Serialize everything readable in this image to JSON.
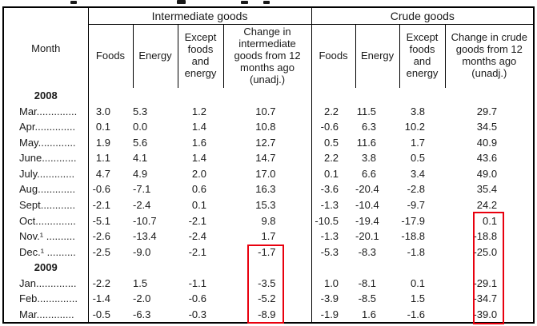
{
  "page": {
    "background": "#ffffff",
    "text_color": "#1a1a1a",
    "border_color": "#000000",
    "highlight_color": "#e8000e"
  },
  "table": {
    "month_header": "Month",
    "groups": [
      {
        "title": "Intermediate goods",
        "columns": [
          "Foods",
          "Energy",
          "Except foods and energy",
          "Change in intermediate goods from 12 months ago (unadj.)"
        ]
      },
      {
        "title": "Crude goods",
        "columns": [
          "Foods",
          "Energy",
          "Except foods and energy",
          "Change in crude goods from 12 months ago (unadj.)"
        ]
      }
    ],
    "rows": [
      {
        "kind": "year",
        "label": "2008"
      },
      {
        "kind": "month",
        "label": "Mar..............",
        "values": [
          "3.0",
          "5.3",
          "1.2",
          "10.7",
          "2.2",
          "11.5",
          "3.8",
          "29.7"
        ]
      },
      {
        "kind": "month",
        "label": "Apr..............",
        "values": [
          "0.1",
          "0.0",
          "1.4",
          "10.8",
          "-0.6",
          "6.3",
          "10.2",
          "34.5"
        ]
      },
      {
        "kind": "month",
        "label": "May.............",
        "values": [
          "1.9",
          "5.6",
          "1.6",
          "12.7",
          "0.5",
          "11.6",
          "1.7",
          "40.9"
        ]
      },
      {
        "kind": "month",
        "label": "June............",
        "values": [
          "1.1",
          "4.1",
          "1.4",
          "14.7",
          "2.2",
          "3.8",
          "0.5",
          "43.6"
        ]
      },
      {
        "kind": "month",
        "label": "July.............",
        "values": [
          "4.7",
          "4.9",
          "2.0",
          "17.0",
          "0.1",
          "6.6",
          "3.4",
          "49.0"
        ]
      },
      {
        "kind": "month",
        "label": "Aug.............",
        "values": [
          "-0.6",
          "-7.1",
          "0.6",
          "16.3",
          "-3.6",
          "-20.4",
          "-2.8",
          "35.4"
        ]
      },
      {
        "kind": "month",
        "label": "Sept............",
        "values": [
          "-2.1",
          "-2.4",
          "0.1",
          "15.3",
          "-1.3",
          "-10.4",
          "-9.7",
          "24.2"
        ]
      },
      {
        "kind": "month",
        "label": "Oct..............",
        "values": [
          "-5.1",
          "-10.7",
          "-2.1",
          "9.8",
          "-10.5",
          "-19.4",
          "-17.9",
          "0.1"
        ]
      },
      {
        "kind": "month",
        "label": "Nov.¹ ..........",
        "values": [
          "-2.6",
          "-13.4",
          "-2.4",
          "1.7",
          "-1.3",
          "-20.1",
          "-18.8",
          "-18.8"
        ]
      },
      {
        "kind": "month",
        "label": "Dec.¹ ..........",
        "values": [
          "-2.5",
          "-9.0",
          "-2.1",
          "-1.7",
          "-5.3",
          "-8.3",
          "-1.8",
          "-25.0"
        ]
      },
      {
        "kind": "year",
        "label": "2009"
      },
      {
        "kind": "month",
        "label": "Jan..............",
        "values": [
          "-2.2",
          "1.5",
          "-1.1",
          "-3.5",
          "1.0",
          "-8.1",
          "0.1",
          "-29.1"
        ]
      },
      {
        "kind": "month",
        "label": "Feb..............",
        "values": [
          "-1.4",
          "-2.0",
          "-0.6",
          "-5.2",
          "-3.9",
          "-8.5",
          "1.5",
          "-34.7"
        ]
      },
      {
        "kind": "month",
        "label": "Mar.............",
        "values": [
          "-0.5",
          "-6.3",
          "-0.3",
          "-8.9",
          "-1.9",
          "1.6",
          "-1.6",
          "-39.0"
        ]
      }
    ]
  },
  "highlights": [
    {
      "name": "intermediate-change-box",
      "color": "#e8000e"
    },
    {
      "name": "crude-change-box",
      "color": "#e8000e"
    }
  ]
}
